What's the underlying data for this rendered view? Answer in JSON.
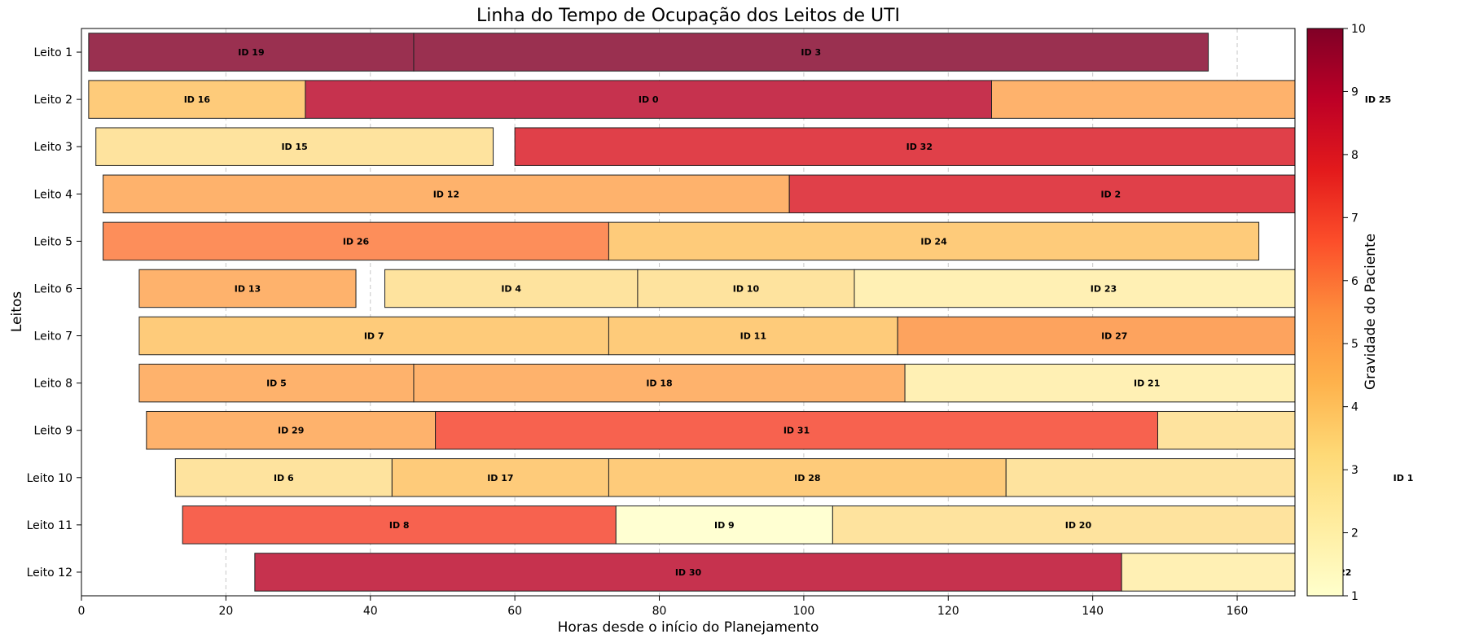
{
  "chart_data": {
    "type": "bar",
    "orientation": "horizontal-timeline",
    "title": "Linha do Tempo de Ocupação dos Leitos de UTI",
    "xlabel": "Horas desde o início do Planejamento",
    "ylabel": "Leitos",
    "xlim": [
      0,
      168
    ],
    "xticks": [
      0,
      20,
      40,
      60,
      80,
      100,
      120,
      140,
      160
    ],
    "grid": "vertical-dashed",
    "categories": [
      "Leito 1",
      "Leito 2",
      "Leito 3",
      "Leito 4",
      "Leito 5",
      "Leito 6",
      "Leito 7",
      "Leito 8",
      "Leito 9",
      "Leito 10",
      "Leito 11",
      "Leito 12"
    ],
    "colorbar": {
      "label": "Gravidade do Paciente",
      "min": 1,
      "max": 10,
      "ticks": [
        1,
        2,
        3,
        4,
        5,
        6,
        7,
        8,
        9,
        10
      ],
      "colormap": [
        "#ffffcc",
        "#ffeda0",
        "#fed976",
        "#feb24c",
        "#fd8d3c",
        "#fc4e2a",
        "#e31a1c",
        "#bd0026",
        "#800026"
      ]
    },
    "bars": [
      {
        "bed": "Leito 1",
        "label": "ID 19",
        "start": 1,
        "end": 46,
        "color": "#9a3050"
      },
      {
        "bed": "Leito 1",
        "label": "ID 3",
        "start": 46,
        "end": 156,
        "color": "#9a3050"
      },
      {
        "bed": "Leito 2",
        "label": "ID 16",
        "start": 1,
        "end": 31,
        "color": "#fecb7a"
      },
      {
        "bed": "Leito 2",
        "label": "ID 0",
        "start": 31,
        "end": 126,
        "color": "#c6324e"
      },
      {
        "bed": "Leito 2",
        "label": "ID 25",
        "start": 126,
        "end": 233,
        "color": "#feb26c"
      },
      {
        "bed": "Leito 3",
        "label": "ID 15",
        "start": 2,
        "end": 57,
        "color": "#fee39e"
      },
      {
        "bed": "Leito 3",
        "label": "ID 32",
        "start": 60,
        "end": 172,
        "color": "#e04049"
      },
      {
        "bed": "Leito 4",
        "label": "ID 12",
        "start": 3,
        "end": 98,
        "color": "#feb26c"
      },
      {
        "bed": "Leito 4",
        "label": "ID 2",
        "start": 98,
        "end": 187,
        "color": "#e04049"
      },
      {
        "bed": "Leito 5",
        "label": "ID 26",
        "start": 3,
        "end": 73,
        "color": "#fd8e5a"
      },
      {
        "bed": "Leito 5",
        "label": "ID 24",
        "start": 73,
        "end": 163,
        "color": "#fecb7a"
      },
      {
        "bed": "Leito 6",
        "label": "ID 13",
        "start": 8,
        "end": 38,
        "color": "#feb26c"
      },
      {
        "bed": "Leito 6",
        "label": "ID 4",
        "start": 42,
        "end": 77,
        "color": "#fee39e"
      },
      {
        "bed": "Leito 6",
        "label": "ID 10",
        "start": 77,
        "end": 107,
        "color": "#fee39e"
      },
      {
        "bed": "Leito 6",
        "label": "ID 23",
        "start": 107,
        "end": 176,
        "color": "#fff0b4"
      },
      {
        "bed": "Leito 7",
        "label": "ID 7",
        "start": 8,
        "end": 73,
        "color": "#fecb7a"
      },
      {
        "bed": "Leito 7",
        "label": "ID 11",
        "start": 73,
        "end": 113,
        "color": "#fecb7a"
      },
      {
        "bed": "Leito 7",
        "label": "ID 27",
        "start": 113,
        "end": 173,
        "color": "#fda35e"
      },
      {
        "bed": "Leito 8",
        "label": "ID 5",
        "start": 8,
        "end": 46,
        "color": "#feb26c"
      },
      {
        "bed": "Leito 8",
        "label": "ID 18",
        "start": 46,
        "end": 114,
        "color": "#feb26c"
      },
      {
        "bed": "Leito 8",
        "label": "ID 21",
        "start": 114,
        "end": 181,
        "color": "#fff0b4"
      },
      {
        "bed": "Leito 9",
        "label": "ID 29",
        "start": 9,
        "end": 49,
        "color": "#feb26c"
      },
      {
        "bed": "Leito 9",
        "label": "ID 31",
        "start": 49,
        "end": 149,
        "color": "#f7624f"
      },
      {
        "bed": "Leito 9",
        "label": "ID 14",
        "start": 149,
        "end": 240,
        "color": "#fee39e"
      },
      {
        "bed": "Leito 10",
        "label": "ID 6",
        "start": 13,
        "end": 43,
        "color": "#fee39e"
      },
      {
        "bed": "Leito 10",
        "label": "ID 17",
        "start": 43,
        "end": 73,
        "color": "#fecb7a"
      },
      {
        "bed": "Leito 10",
        "label": "ID 28",
        "start": 73,
        "end": 128,
        "color": "#fecb7a"
      },
      {
        "bed": "Leito 10",
        "label": "ID 1",
        "start": 128,
        "end": 238,
        "color": "#fee39e"
      },
      {
        "bed": "Leito 11",
        "label": "ID 8",
        "start": 14,
        "end": 74,
        "color": "#f7624f"
      },
      {
        "bed": "Leito 11",
        "label": "ID 9",
        "start": 74,
        "end": 104,
        "color": "#ffffd2"
      },
      {
        "bed": "Leito 11",
        "label": "ID 20",
        "start": 104,
        "end": 172,
        "color": "#fee39e"
      },
      {
        "bed": "Leito 12",
        "label": "ID 30",
        "start": 24,
        "end": 144,
        "color": "#c6324e"
      },
      {
        "bed": "Leito 12",
        "label": "ID 22",
        "start": 144,
        "end": 204,
        "color": "#fff0b4"
      }
    ]
  }
}
